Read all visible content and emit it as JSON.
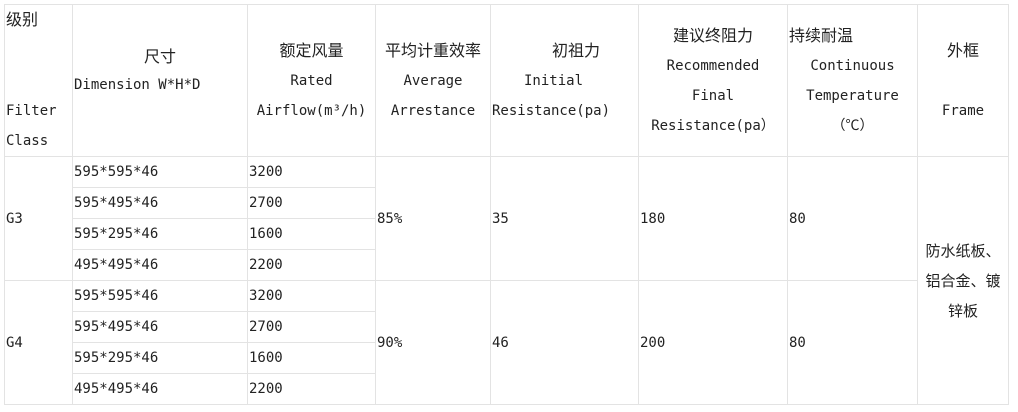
{
  "header": {
    "class": {
      "zh": "级别",
      "en1": "Filter",
      "en2": "Class"
    },
    "dimension": {
      "zh": "尺寸",
      "en": "Dimension W*H*D"
    },
    "airflow": {
      "zh": "额定风量",
      "en1": "Rated",
      "en2": "Airflow(m³/h)"
    },
    "arrestance": {
      "zh": "平均计重效率",
      "en1": "Average",
      "en2": "Arrestance"
    },
    "initial": {
      "zh": "初祖力",
      "en1": "Initial",
      "en2": "Resistance(pa)"
    },
    "final": {
      "zh": "建议终阻力",
      "en1": "Recommended",
      "en2": "Final",
      "en3": "Resistance(pa）"
    },
    "temp": {
      "zh": "持续耐温",
      "en1": "Continuous",
      "en2": "Temperature",
      "en3": "（℃）"
    },
    "frame": {
      "zh": "外框",
      "en": "Frame"
    }
  },
  "groups": [
    {
      "class": "G3",
      "arrestance": "85%",
      "initial": "35",
      "final": "180",
      "temp": "80",
      "rows": [
        {
          "dim": "595*595*46",
          "air": "3200"
        },
        {
          "dim": "595*495*46",
          "air": "2700"
        },
        {
          "dim": "595*295*46",
          "air": "1600"
        },
        {
          "dim": "495*495*46",
          "air": "2200"
        }
      ]
    },
    {
      "class": "G4",
      "arrestance": "90%",
      "initial": "46",
      "final": "200",
      "temp": "80",
      "rows": [
        {
          "dim": "595*595*46",
          "air": "3200"
        },
        {
          "dim": "595*495*46",
          "air": "2700"
        },
        {
          "dim": "595*295*46",
          "air": "1600"
        },
        {
          "dim": "495*495*46",
          "air": "2200"
        }
      ]
    }
  ],
  "frame_value": {
    "l1": "防水纸板、",
    "l2": "铝合金、镀",
    "l3": "锌板"
  }
}
